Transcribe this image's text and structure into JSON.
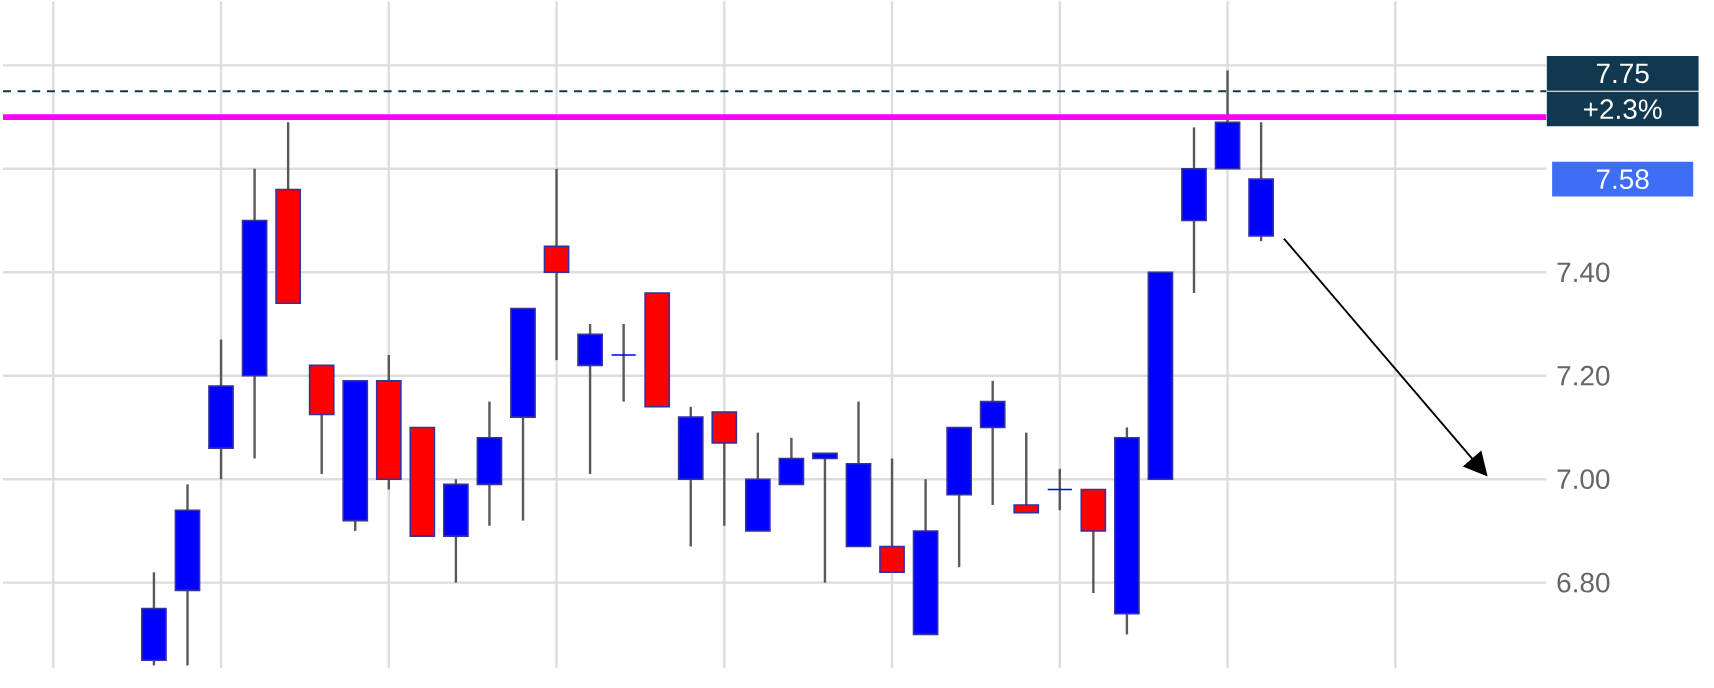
{
  "chart_data": {
    "type": "candlestick",
    "categories": [
      null,
      null,
      null,
      null,
      null,
      null,
      null,
      null,
      null,
      null,
      null,
      null,
      null,
      null,
      null,
      null,
      null,
      null,
      null,
      null,
      null,
      null,
      null,
      null,
      null,
      null,
      null,
      null,
      null,
      null,
      null,
      null,
      null,
      null,
      null,
      null,
      null,
      null,
      null,
      null,
      null,
      null,
      null,
      null,
      null,
      null
    ],
    "ohlc": [
      null,
      null,
      null,
      null,
      [
        6.65,
        6.82,
        6.64,
        6.75
      ],
      [
        6.785,
        6.99,
        6.64,
        6.94
      ],
      [
        7.06,
        7.27,
        7.0,
        7.18
      ],
      [
        7.2,
        7.6,
        7.04,
        7.5
      ],
      [
        7.56,
        7.69,
        7.34,
        7.34
      ],
      [
        7.22,
        7.22,
        7.01,
        7.125
      ],
      [
        6.92,
        7.19,
        6.9,
        7.19
      ],
      [
        7.19,
        7.24,
        6.98,
        7.0
      ],
      [
        7.1,
        7.1,
        6.89,
        6.89
      ],
      [
        6.89,
        7.0,
        6.8,
        6.99
      ],
      [
        6.99,
        7.15,
        6.91,
        7.08
      ],
      [
        7.12,
        7.33,
        6.92,
        7.33
      ],
      [
        7.45,
        7.6,
        7.23,
        7.4
      ],
      [
        7.22,
        7.3,
        7.01,
        7.28
      ],
      [
        7.24,
        7.3,
        7.15,
        7.24
      ],
      [
        7.36,
        7.36,
        7.14,
        7.14
      ],
      [
        7.0,
        7.14,
        6.87,
        7.12
      ],
      [
        7.13,
        7.13,
        6.91,
        7.07
      ],
      [
        6.9,
        7.09,
        6.9,
        7.0
      ],
      [
        6.99,
        7.08,
        6.99,
        7.04
      ],
      [
        7.04,
        7.05,
        6.8,
        7.05
      ],
      [
        6.87,
        7.15,
        6.87,
        7.03
      ],
      [
        6.87,
        7.04,
        6.82,
        6.82
      ],
      [
        6.7,
        7.0,
        6.7,
        6.9
      ],
      [
        6.97,
        7.1,
        6.83,
        7.1
      ],
      [
        7.1,
        7.19,
        6.95,
        7.15
      ],
      [
        6.95,
        7.09,
        6.935,
        6.935
      ],
      [
        6.98,
        7.02,
        6.94,
        6.98
      ],
      [
        6.98,
        6.98,
        6.78,
        6.9
      ],
      [
        6.74,
        7.1,
        6.7,
        7.08
      ],
      [
        7.0,
        7.4,
        7.0,
        7.4
      ],
      [
        7.5,
        7.68,
        7.36,
        7.6
      ],
      [
        7.6,
        7.79,
        7.6,
        7.69
      ],
      [
        7.47,
        7.69,
        7.46,
        7.58
      ],
      null,
      null,
      null,
      null,
      null,
      null,
      null,
      null
    ],
    "colors": [
      null,
      null,
      null,
      null,
      "#0000ff",
      "#0000ff",
      "#0000ff",
      "#0000ff",
      "#ff0000",
      "#ff0000",
      "#0000ff",
      "#ff0000",
      "#ff0000",
      "#0000ff",
      "#0000ff",
      "#0000ff",
      "#ff0000",
      "#0000ff",
      "#0000ff",
      "#ff0000",
      "#0000ff",
      "#ff0000",
      "#0000ff",
      "#0000ff",
      "#0000ff",
      "#0000ff",
      "#ff0000",
      "#0000ff",
      "#0000ff",
      "#0000ff",
      "#ff0000",
      "#0000ff",
      "#ff0000",
      "#0000ff",
      "#0000ff",
      "#0000ff",
      "#0000ff",
      "#0000ff",
      null,
      null,
      null,
      null,
      null,
      null,
      null,
      null
    ],
    "ylim": [
      6.635,
      7.924
    ],
    "yticks": [
      {
        "value": 6.8,
        "label": "6.80"
      },
      {
        "value": 7.0,
        "label": "7.00"
      },
      {
        "value": 7.2,
        "label": "7.20"
      },
      {
        "value": 7.4,
        "label": "7.40"
      },
      {
        "value": 7.6,
        "label": null
      },
      {
        "value": 7.8,
        "label": null
      }
    ],
    "tick_labels": "y",
    "grid": true,
    "ref_lines": [
      {
        "axis": "y",
        "value": 7.7,
        "color": "#ff00ff"
      },
      {
        "axis": "y",
        "value": 7.75,
        "label": "7.75",
        "color": "#12384f",
        "line_style": "dashed"
      }
    ],
    "annotations": [
      "+2.3%",
      "7.58"
    ]
  }
}
